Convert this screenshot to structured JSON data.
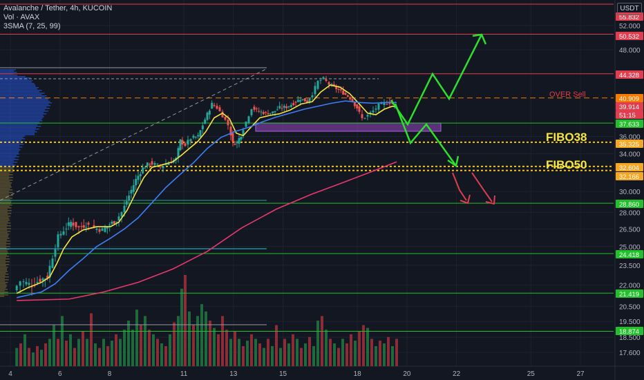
{
  "header": {
    "title": "Avalanche / Tether, 4h, KUCOIN",
    "volume_label": "Vol · AVAX",
    "sma_label": "3SMA (7, 25, 99)",
    "currency": "USDT"
  },
  "chart_data": {
    "type": "candlestick",
    "symbol": "AVAX/USDT",
    "exchange": "KUCOIN",
    "interval": "4h",
    "y_scale": "log",
    "ylim": [
      16.8,
      56
    ],
    "x_ticks": [
      "4",
      "6",
      "8",
      "11",
      "13",
      "15",
      "18",
      "20",
      "22",
      "25",
      "27"
    ],
    "y_ticks": [
      "52.000",
      "48.000",
      "36.000",
      "34.000",
      "30.000",
      "28.000",
      "26.500",
      "25.000",
      "23.500",
      "22.000",
      "20.500",
      "19.500",
      "18.500",
      "17.600"
    ],
    "price_labels": [
      {
        "value": "55.832",
        "color": "#e03e4e"
      },
      {
        "value": "50.532",
        "color": "#e03e4e"
      },
      {
        "value": "44.328",
        "color": "#e03e4e"
      },
      {
        "value": "40.909",
        "color": "#f57c00"
      },
      {
        "value": "39.914",
        "color": "#e03e4e"
      },
      {
        "value": "51:15",
        "color": "#e03e4e"
      },
      {
        "value": "37.633",
        "color": "#22c02a"
      },
      {
        "value": "35.325",
        "color": "#f5a623"
      },
      {
        "value": "32.604",
        "color": "#f5a623"
      },
      {
        "value": "32.166",
        "color": "#f5a623"
      },
      {
        "value": "28.860",
        "color": "#22c02a"
      },
      {
        "value": "24.418",
        "color": "#22c02a"
      },
      {
        "value": "21.419",
        "color": "#22c02a"
      },
      {
        "value": "18.874",
        "color": "#22c02a"
      }
    ],
    "horizontal_levels": [
      {
        "price": 55.832,
        "color": "#e03e4e",
        "style": "solid"
      },
      {
        "price": 50.532,
        "color": "#e03e4e",
        "style": "solid"
      },
      {
        "price": 44.328,
        "color": "#e03e4e",
        "style": "solid"
      },
      {
        "price": 40.909,
        "color": "#f57c00",
        "style": "dashed"
      },
      {
        "price": 37.633,
        "color": "#22c02a",
        "style": "solid"
      },
      {
        "price": 35.325,
        "color": "#f5c518",
        "style": "dotted"
      },
      {
        "price": 32.604,
        "color": "#f5c518",
        "style": "dotted"
      },
      {
        "price": 32.166,
        "color": "#f5c518",
        "style": "dotted"
      },
      {
        "price": 28.86,
        "color": "#22c02a",
        "style": "solid"
      },
      {
        "price": 24.418,
        "color": "#22c02a",
        "style": "solid"
      },
      {
        "price": 21.419,
        "color": "#22c02a",
        "style": "solid"
      },
      {
        "price": 18.874,
        "color": "#22c02a",
        "style": "solid"
      }
    ],
    "annotations": [
      {
        "text": "OVER Sell",
        "color": "#e03e4e"
      },
      {
        "text": "FIBO38",
        "color": "#f5e642"
      },
      {
        "text": "FIBO50",
        "color": "#f5e642"
      }
    ],
    "price_path": [
      [
        24.2,
        21.6
      ],
      [
        34,
        22.3
      ],
      [
        50,
        22.0
      ],
      [
        62,
        22.4
      ],
      [
        72,
        22.6
      ],
      [
        80,
        24.2
      ],
      [
        88,
        25.8
      ],
      [
        96,
        26.4
      ],
      [
        106,
        27.1
      ],
      [
        118,
        26.6
      ],
      [
        128,
        26.9
      ],
      [
        140,
        26.6
      ],
      [
        152,
        26.4
      ],
      [
        162,
        26.9
      ],
      [
        172,
        27.3
      ],
      [
        180,
        28.0
      ],
      [
        190,
        29.6
      ],
      [
        200,
        31.2
      ],
      [
        210,
        32.4
      ],
      [
        220,
        33.0
      ],
      [
        228,
        32.8
      ],
      [
        236,
        32.6
      ],
      [
        248,
        33.0
      ],
      [
        258,
        33.4
      ],
      [
        264,
        35.5
      ],
      [
        272,
        35.0
      ],
      [
        280,
        35.8
      ],
      [
        290,
        36.0
      ],
      [
        300,
        38.1
      ],
      [
        310,
        40.1
      ],
      [
        318,
        39.6
      ],
      [
        326,
        38.6
      ],
      [
        334,
        37.4
      ],
      [
        340,
        35.2
      ],
      [
        346,
        35.3
      ],
      [
        352,
        36.2
      ],
      [
        360,
        37.8
      ],
      [
        368,
        39.6
      ],
      [
        378,
        39.1
      ],
      [
        388,
        38.9
      ],
      [
        398,
        39.0
      ],
      [
        408,
        39.6
      ],
      [
        418,
        39.7
      ],
      [
        428,
        40.2
      ],
      [
        438,
        40.8
      ],
      [
        448,
        40.4
      ],
      [
        456,
        41.5
      ],
      [
        464,
        43.2
      ],
      [
        472,
        43.6
      ],
      [
        480,
        42.8
      ],
      [
        490,
        42.2
      ],
      [
        500,
        41.6
      ],
      [
        510,
        40.9
      ],
      [
        520,
        39.6
      ],
      [
        528,
        38.2
      ],
      [
        536,
        38.6
      ],
      [
        544,
        39.2
      ],
      [
        552,
        39.9
      ],
      [
        560,
        40.2
      ],
      [
        568,
        40.3
      ],
      [
        574,
        39.9
      ]
    ],
    "sma": [
      {
        "period": 7,
        "color": "#f5e642",
        "values": [
          [
            24.2,
            21.4
          ],
          [
            40,
            21.8
          ],
          [
            60,
            22.2
          ],
          [
            72,
            22.6
          ],
          [
            82,
            23.6
          ],
          [
            92,
            24.8
          ],
          [
            104,
            25.8
          ],
          [
            120,
            26.4
          ],
          [
            140,
            26.7
          ],
          [
            160,
            26.7
          ],
          [
            172,
            27.1
          ],
          [
            184,
            28.2
          ],
          [
            196,
            29.8
          ],
          [
            208,
            31.4
          ],
          [
            220,
            32.5
          ],
          [
            236,
            32.8
          ],
          [
            250,
            33.1
          ],
          [
            262,
            33.8
          ],
          [
            274,
            34.6
          ],
          [
            286,
            35.4
          ],
          [
            298,
            36.6
          ],
          [
            310,
            38.3
          ],
          [
            322,
            38.9
          ],
          [
            332,
            38.2
          ],
          [
            342,
            36.4
          ],
          [
            352,
            36.1
          ],
          [
            364,
            37.2
          ],
          [
            376,
            38.3
          ],
          [
            390,
            38.6
          ],
          [
            404,
            38.8
          ],
          [
            420,
            39.3
          ],
          [
            436,
            40.1
          ],
          [
            452,
            40.4
          ],
          [
            464,
            41.7
          ],
          [
            478,
            42.7
          ],
          [
            492,
            42.4
          ],
          [
            506,
            41.5
          ],
          [
            520,
            40.1
          ],
          [
            532,
            38.9
          ],
          [
            544,
            38.7
          ],
          [
            556,
            39.4
          ],
          [
            568,
            39.8
          ],
          [
            574,
            39.7
          ]
        ]
      },
      {
        "period": 25,
        "color": "#3d7ff5",
        "values": [
          [
            24.2,
            21.1
          ],
          [
            60,
            21.5
          ],
          [
            80,
            22.1
          ],
          [
            100,
            23.1
          ],
          [
            120,
            24.0
          ],
          [
            140,
            25.0
          ],
          [
            160,
            25.7
          ],
          [
            180,
            26.5
          ],
          [
            200,
            27.5
          ],
          [
            220,
            28.9
          ],
          [
            240,
            30.4
          ],
          [
            260,
            31.7
          ],
          [
            280,
            33.0
          ],
          [
            300,
            34.6
          ],
          [
            320,
            35.9
          ],
          [
            340,
            36.6
          ],
          [
            360,
            37.1
          ],
          [
            380,
            37.8
          ],
          [
            400,
            38.4
          ],
          [
            420,
            38.9
          ],
          [
            440,
            39.4
          ],
          [
            460,
            39.8
          ],
          [
            480,
            40.2
          ],
          [
            500,
            40.5
          ],
          [
            520,
            40.3
          ],
          [
            540,
            40.2
          ],
          [
            560,
            40.3
          ],
          [
            574,
            40.3
          ]
        ]
      },
      {
        "period": 99,
        "color": "#e8386d",
        "values": [
          [
            24.2,
            20.9
          ],
          [
            100,
            21.0
          ],
          [
            150,
            21.5
          ],
          [
            200,
            22.2
          ],
          [
            250,
            23.2
          ],
          [
            300,
            24.6
          ],
          [
            350,
            26.6
          ],
          [
            400,
            28.3
          ],
          [
            450,
            29.7
          ],
          [
            500,
            31.0
          ],
          [
            540,
            32.1
          ],
          [
            574,
            33.1
          ]
        ]
      }
    ],
    "volume": [
      {
        "pos": 24.2,
        "height": 0.2,
        "up": true
      },
      {
        "pos": 30,
        "height": 0.25,
        "up": false
      },
      {
        "pos": 36,
        "height": 0.35,
        "up": true
      },
      {
        "pos": 42,
        "height": 0.2,
        "up": false
      },
      {
        "pos": 48,
        "height": 0.15,
        "up": true
      },
      {
        "pos": 54,
        "height": 0.22,
        "up": false
      },
      {
        "pos": 60,
        "height": 0.18,
        "up": true
      },
      {
        "pos": 66,
        "height": 0.25,
        "up": false
      },
      {
        "pos": 72,
        "height": 0.3,
        "up": true
      },
      {
        "pos": 78,
        "height": 0.45,
        "up": true
      },
      {
        "pos": 84,
        "height": 0.3,
        "up": false
      },
      {
        "pos": 90,
        "height": 0.55,
        "up": true
      },
      {
        "pos": 96,
        "height": 0.28,
        "up": false
      },
      {
        "pos": 102,
        "height": 0.35,
        "up": true
      },
      {
        "pos": 108,
        "height": 0.2,
        "up": false
      },
      {
        "pos": 114,
        "height": 0.3,
        "up": true
      },
      {
        "pos": 120,
        "height": 0.38,
        "up": false
      },
      {
        "pos": 126,
        "height": 0.3,
        "up": true
      },
      {
        "pos": 132,
        "height": 0.58,
        "up": false
      },
      {
        "pos": 138,
        "height": 0.25,
        "up": true
      },
      {
        "pos": 144,
        "height": 0.2,
        "up": false
      },
      {
        "pos": 150,
        "height": 0.3,
        "up": true
      },
      {
        "pos": 156,
        "height": 0.22,
        "up": false
      },
      {
        "pos": 162,
        "height": 0.28,
        "up": true
      },
      {
        "pos": 168,
        "height": 0.35,
        "up": false
      },
      {
        "pos": 174,
        "height": 0.3,
        "up": true
      },
      {
        "pos": 180,
        "height": 0.4,
        "up": true
      },
      {
        "pos": 186,
        "height": 0.5,
        "up": true
      },
      {
        "pos": 192,
        "height": 0.4,
        "up": true
      },
      {
        "pos": 198,
        "height": 0.62,
        "up": true
      },
      {
        "pos": 204,
        "height": 0.45,
        "up": false
      },
      {
        "pos": 210,
        "height": 0.55,
        "up": true
      },
      {
        "pos": 216,
        "height": 0.4,
        "up": false
      },
      {
        "pos": 222,
        "height": 0.35,
        "up": true
      },
      {
        "pos": 228,
        "height": 0.3,
        "up": false
      },
      {
        "pos": 234,
        "height": 0.25,
        "up": true
      },
      {
        "pos": 240,
        "height": 0.22,
        "up": false
      },
      {
        "pos": 246,
        "height": 0.35,
        "up": true
      },
      {
        "pos": 252,
        "height": 0.48,
        "up": false
      },
      {
        "pos": 258,
        "height": 0.55,
        "up": true
      },
      {
        "pos": 263,
        "height": 0.85,
        "up": true
      },
      {
        "pos": 268,
        "height": 1.0,
        "up": false
      },
      {
        "pos": 274,
        "height": 0.6,
        "up": true
      },
      {
        "pos": 280,
        "height": 0.45,
        "up": false
      },
      {
        "pos": 286,
        "height": 0.55,
        "up": true
      },
      {
        "pos": 292,
        "height": 0.68,
        "up": true
      },
      {
        "pos": 298,
        "height": 0.6,
        "up": true
      },
      {
        "pos": 304,
        "height": 0.5,
        "up": false
      },
      {
        "pos": 310,
        "height": 0.42,
        "up": true
      },
      {
        "pos": 316,
        "height": 0.35,
        "up": false
      },
      {
        "pos": 322,
        "height": 0.55,
        "up": false
      },
      {
        "pos": 328,
        "height": 0.4,
        "up": false
      },
      {
        "pos": 334,
        "height": 0.3,
        "up": true
      },
      {
        "pos": 340,
        "height": 0.38,
        "up": false
      },
      {
        "pos": 346,
        "height": 0.3,
        "up": true
      },
      {
        "pos": 352,
        "height": 0.22,
        "up": false
      },
      {
        "pos": 358,
        "height": 0.28,
        "up": true
      },
      {
        "pos": 364,
        "height": 0.35,
        "up": false
      },
      {
        "pos": 370,
        "height": 0.3,
        "up": true
      },
      {
        "pos": 376,
        "height": 0.25,
        "up": false
      },
      {
        "pos": 382,
        "height": 0.2,
        "up": true
      },
      {
        "pos": 388,
        "height": 0.3,
        "up": false
      },
      {
        "pos": 394,
        "height": 0.22,
        "up": true
      },
      {
        "pos": 400,
        "height": 0.45,
        "up": false
      },
      {
        "pos": 406,
        "height": 0.2,
        "up": true
      },
      {
        "pos": 412,
        "height": 0.3,
        "up": false
      },
      {
        "pos": 418,
        "height": 0.25,
        "up": true
      },
      {
        "pos": 424,
        "height": 0.35,
        "up": false
      },
      {
        "pos": 430,
        "height": 0.3,
        "up": true
      },
      {
        "pos": 436,
        "height": 0.2,
        "up": false
      },
      {
        "pos": 442,
        "height": 0.25,
        "up": true
      },
      {
        "pos": 448,
        "height": 0.32,
        "up": false
      },
      {
        "pos": 454,
        "height": 0.22,
        "up": true
      },
      {
        "pos": 460,
        "height": 0.5,
        "up": true
      },
      {
        "pos": 466,
        "height": 0.55,
        "up": false
      },
      {
        "pos": 472,
        "height": 0.4,
        "up": true
      },
      {
        "pos": 478,
        "height": 0.3,
        "up": false
      },
      {
        "pos": 484,
        "height": 0.25,
        "up": true
      },
      {
        "pos": 490,
        "height": 0.2,
        "up": false
      },
      {
        "pos": 496,
        "height": 0.3,
        "up": true
      },
      {
        "pos": 502,
        "height": 0.25,
        "up": false
      },
      {
        "pos": 508,
        "height": 0.35,
        "up": false
      },
      {
        "pos": 514,
        "height": 0.28,
        "up": true
      },
      {
        "pos": 520,
        "height": 0.38,
        "up": false
      },
      {
        "pos": 526,
        "height": 0.45,
        "up": false
      },
      {
        "pos": 532,
        "height": 0.42,
        "up": true
      },
      {
        "pos": 538,
        "height": 0.3,
        "up": false
      },
      {
        "pos": 544,
        "height": 0.22,
        "up": true
      },
      {
        "pos": 550,
        "height": 0.28,
        "up": false
      },
      {
        "pos": 556,
        "height": 0.25,
        "up": true
      },
      {
        "pos": 562,
        "height": 0.32,
        "up": false
      },
      {
        "pos": 568,
        "height": 0.22,
        "up": true
      },
      {
        "pos": 574,
        "height": 0.3,
        "up": false
      }
    ],
    "colors": {
      "up": "#26a69a",
      "down": "#ef5350",
      "background": "#131722"
    }
  }
}
